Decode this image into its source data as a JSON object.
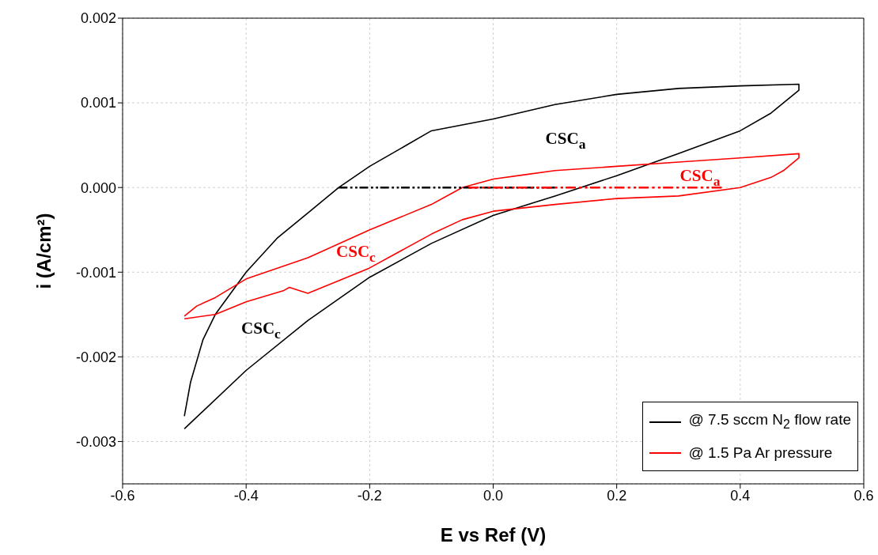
{
  "chart_data": {
    "type": "line",
    "xlabel": "E vs Ref (V)",
    "ylabel": "i (A/cm²)",
    "xlim": [
      -0.6,
      0.6
    ],
    "xticks": [
      -0.6,
      -0.4,
      -0.2,
      {
        "value": 0,
        "label": "0.0"
      },
      0.2,
      0.4,
      0.6
    ],
    "ylim": [
      -0.0035,
      0.002
    ],
    "yticks": [
      -0.003,
      -0.002,
      -0.001,
      {
        "value": 0,
        "label": "0.000"
      },
      0.001,
      0.002
    ],
    "grid": true,
    "legend": "bottom right",
    "marker": "none",
    "line_style": "solid",
    "series": [
      {
        "name": "@ 7.5 sccm N$_{2}$ flow rate",
        "color": "#000000",
        "x": [
          -0.5,
          -0.49,
          -0.47,
          -0.45,
          -0.4,
          -0.35,
          -0.3,
          -0.25,
          -0.2,
          -0.1,
          0,
          0.1,
          0.2,
          0.3,
          0.4,
          0.495,
          0.495,
          0.45,
          0.4,
          0.3,
          0.2,
          0.1,
          0,
          -0.1,
          -0.2,
          -0.3,
          -0.4,
          -0.5
        ],
        "values": [
          -0.0027,
          -0.0023,
          -0.0018,
          -0.0015,
          -0.001,
          -0.0006,
          -0.0003,
          0,
          0.00025,
          0.00067,
          0.00081,
          0.00098,
          0.0011,
          0.00117,
          0.0012,
          0.00122,
          0.00115,
          0.00088,
          0.00067,
          0.0004,
          0.00014,
          -0.0001,
          -0.00033,
          -0.00066,
          -0.00106,
          -0.00157,
          -0.00216,
          -0.00285
        ]
      },
      {
        "name": "@ 1.5 Pa Ar pressure",
        "color": "#ff0000",
        "x": [
          -0.5,
          -0.48,
          -0.45,
          -0.4,
          -0.3,
          -0.2,
          -0.1,
          -0.05,
          0,
          0.05,
          0.1,
          0.2,
          0.3,
          0.4,
          0.495,
          0.495,
          0.47,
          0.45,
          0.4,
          0.3,
          0.2,
          0.1,
          0,
          -0.05,
          -0.1,
          -0.2,
          -0.3,
          -0.33,
          -0.34,
          -0.4,
          -0.45,
          -0.5
        ],
        "values": [
          -0.00152,
          -0.0014,
          -0.0013,
          -0.00108,
          -0.00083,
          -0.0005,
          -0.0002,
          0,
          0.0001,
          0.00015,
          0.0002,
          0.00025,
          0.0003,
          0.00035,
          0.0004,
          0.00035,
          0.0002,
          0.00012,
          0,
          -0.0001,
          -0.00013,
          -0.0002,
          -0.00028,
          -0.00038,
          -0.00055,
          -0.00095,
          -0.00125,
          -0.00118,
          -0.00122,
          -0.00135,
          -0.0015,
          -0.00155
        ]
      },
      {
        "color": "#000000",
        "line_style": "dashed",
        "x": [
          -0.25,
          0.1
        ],
        "values": [
          0,
          0
        ]
      },
      {
        "color": "#ff0000",
        "line_style": "dashed",
        "x": [
          -0.04,
          0.37
        ],
        "values": [
          0,
          0
        ]
      }
    ],
    "annotations": [
      "CSC$_{a}$",
      "CSC$_{c}$",
      "CSC$_{a}$",
      "CSC$_{c}$"
    ]
  }
}
